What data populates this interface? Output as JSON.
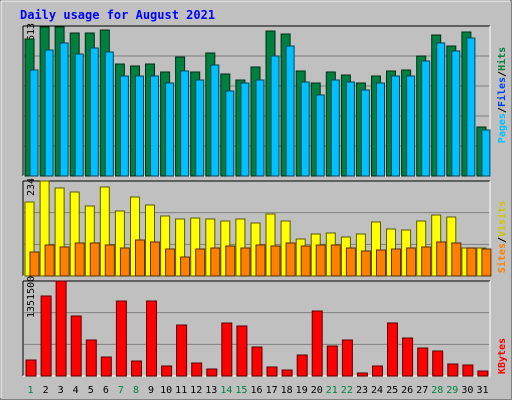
{
  "chart_data": {
    "type": "bar",
    "title": "Daily usage for August 2021",
    "categories": [
      "1",
      "2",
      "3",
      "4",
      "5",
      "6",
      "7",
      "8",
      "9",
      "10",
      "11",
      "12",
      "13",
      "14",
      "15",
      "16",
      "17",
      "18",
      "19",
      "20",
      "21",
      "22",
      "23",
      "24",
      "25",
      "26",
      "27",
      "28",
      "29",
      "30",
      "31"
    ],
    "weekend_days": [
      "1",
      "7",
      "8",
      "14",
      "15",
      "21",
      "22",
      "28",
      "29"
    ],
    "panels": [
      {
        "id": "hits",
        "max_label": "1613",
        "ymax": 1613,
        "legend": [
          {
            "text": "Pages",
            "color": "#00c0ff"
          },
          {
            "text": "Files",
            "color": "#0040ff"
          },
          {
            "text": "Hits",
            "color": "#008040"
          }
        ],
        "series": [
          {
            "name": "Hits",
            "color": "#008040",
            "values": [
              1480,
              1613,
              1613,
              1545,
              1545,
              1580,
              1210,
              1190,
              1210,
              1120,
              1290,
              1120,
              1330,
              1100,
              1040,
              1180,
              1570,
              1540,
              1140,
              1000,
              1120,
              1090,
              1000,
              1080,
              1140,
              1145,
              1300,
              1520,
              1410,
              1560,
              530
            ]
          },
          {
            "name": "Files",
            "color": "#0040ff",
            "values": [
              1150,
              1360,
              1440,
              1320,
              1380,
              1340,
              1080,
              1080,
              1080,
              1000,
              1140,
              1040,
              1200,
              920,
              1000,
              1040,
              1300,
              1400,
              1020,
              880,
              1040,
              1020,
              930,
              1000,
              1080,
              1080,
              1240,
              1440,
              1350,
              1490,
              500
            ]
          },
          {
            "name": "Pages",
            "color": "#00c0ff",
            "values": [
              1150,
              1360,
              1440,
              1320,
              1380,
              1340,
              1080,
              1080,
              1080,
              1000,
              1140,
              1040,
              1200,
              920,
              1000,
              1040,
              1300,
              1400,
              1020,
              880,
              1040,
              1020,
              930,
              1000,
              1080,
              1080,
              1240,
              1440,
              1350,
              1490,
              500
            ]
          }
        ]
      },
      {
        "id": "visits",
        "max_label": "234",
        "ymax": 234,
        "legend": [
          {
            "text": "Sites",
            "color": "#ff8000"
          },
          {
            "text": "Visits",
            "color": "#ffff00"
          }
        ],
        "series": [
          {
            "name": "Visits",
            "color": "#ffff00",
            "values": [
              184,
              234,
              217,
              207,
              174,
              221,
              162,
              196,
              176,
              148,
              142,
              144,
              141,
              136,
              141,
              131,
              153,
              137,
              91,
              104,
              106,
              96,
              104,
              133,
              117,
              113,
              137,
              152,
              146,
              69,
              70
            ]
          },
          {
            "name": "Sites",
            "color": "#ff8000",
            "values": [
              60,
              77,
              72,
              82,
              82,
              77,
              69,
              90,
              85,
              67,
              48,
              67,
              69,
              75,
              69,
              77,
              75,
              82,
              75,
              77,
              77,
              69,
              62,
              64,
              67,
              69,
              72,
              85,
              82,
              69,
              67
            ]
          }
        ]
      },
      {
        "id": "kbytes",
        "max_label": "1351500",
        "ymax": 1351500,
        "legend": [
          {
            "text": "KBytes",
            "color": "#ff0000"
          }
        ],
        "series": [
          {
            "name": "KBytes",
            "color": "#ff0000",
            "values": [
              230000,
              1150000,
              1351500,
              860000,
              520000,
              270000,
              1070000,
              220000,
              1070000,
              140000,
              730000,
              180000,
              100000,
              760000,
              710000,
              410000,
              130000,
              90000,
              300000,
              930000,
              430000,
              520000,
              40000,
              140000,
              760000,
              550000,
              400000,
              360000,
              170000,
              160000,
              70000
            ]
          }
        ]
      }
    ]
  }
}
